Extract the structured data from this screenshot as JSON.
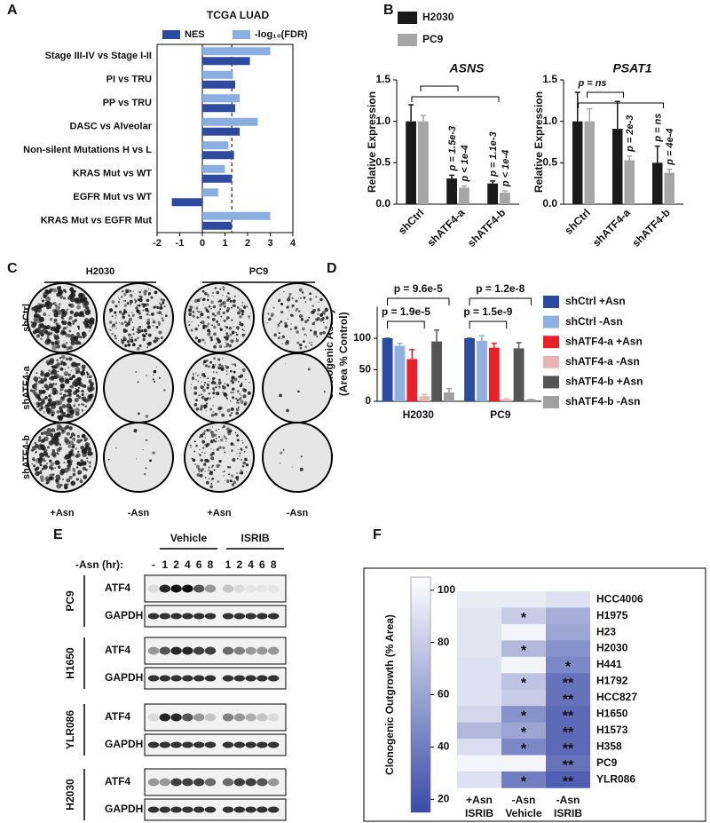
{
  "chart_data": [
    {
      "type": "bar",
      "orientation": "horizontal",
      "panel": "A",
      "title": "TCGA LUAD",
      "categories": [
        "Stage III-IV vs Stage I-II",
        "PI vs TRU",
        "PP vs TRU",
        "DASC vs Alveolar",
        "Non-silent Mutations H vs L",
        "KRAS Mut vs WT",
        "EGFR Mut vs WT",
        "KRAS Mut vs EGFR Mut"
      ],
      "series": [
        {
          "name": "NES",
          "color": "#2e4a9e",
          "values": [
            2.1,
            1.45,
            1.45,
            1.65,
            1.4,
            1.3,
            -1.35,
            1.3
          ]
        },
        {
          "name": "-log₁₀(FDR)",
          "color": "#8aaee0",
          "values": [
            3.0,
            1.35,
            1.65,
            2.45,
            1.15,
            1.0,
            0.7,
            3.0
          ]
        }
      ],
      "xlim": [
        -2,
        4
      ],
      "xticks": [
        -2,
        -1,
        0,
        1,
        2,
        3,
        4
      ],
      "reference_line": 1.3
    },
    {
      "type": "bar",
      "panel": "B",
      "title": "ASNS",
      "ylabel": "Relative Expression",
      "categories": [
        "shCtrl",
        "shATF4-a",
        "shATF4-b"
      ],
      "series": [
        {
          "name": "H2030",
          "color": "#1a1a1a",
          "values": [
            1.0,
            0.31,
            0.25
          ],
          "errors": [
            0.2,
            0.04,
            0.03
          ]
        },
        {
          "name": "PC9",
          "color": "#a6a6a6",
          "values": [
            1.0,
            0.2,
            0.14
          ],
          "errors": [
            0.07,
            0.02,
            0.02
          ]
        }
      ],
      "ylim": [
        0,
        1.5
      ],
      "yticks": [
        {
          "value": 0,
          "label": "0.0"
        },
        {
          "value": 0.5,
          "label": "0.5"
        },
        {
          "value": 1,
          "label": "1.0"
        },
        {
          "value": 1.5,
          "label": "1.5"
        }
      ],
      "annotations": [
        "p = 1.5e-3",
        "p < 1e-4",
        "p = 1.1e-3",
        "p < 1e-4"
      ]
    },
    {
      "type": "bar",
      "title": "PSAT1",
      "ylabel": "Relative Expression",
      "categories": [
        "shCtrl",
        "shATF4-a",
        "shATF4-b"
      ],
      "series": [
        {
          "color": "#1a1a1a",
          "values": [
            1.0,
            0.91,
            0.5
          ],
          "errors": [
            0.35,
            0.33,
            0.2
          ]
        },
        {
          "color": "#a6a6a6",
          "values": [
            1.0,
            0.53,
            0.38
          ],
          "errors": [
            0.15,
            0.05,
            0.04
          ]
        }
      ],
      "ylim": [
        0,
        1.5
      ],
      "yticks": [
        {
          "value": 0,
          "label": "0.0"
        },
        {
          "value": 0.5,
          "label": "0.5"
        },
        {
          "value": 1,
          "label": "1.0"
        },
        {
          "value": 1.5,
          "label": "1.5"
        }
      ],
      "annotations": [
        "p = ns",
        "p = 2e-3",
        "p = ns",
        "p = 4e-4"
      ]
    },
    {
      "type": "bar",
      "panel": "D",
      "ylabel": [
        "Clonogenic Assay",
        "(Area % Control)"
      ],
      "categories": [
        "H2030",
        "PC9"
      ],
      "series": [
        {
          "name": "shCtrl +Asn",
          "color": "#2b4ba0",
          "values": [
            100,
            100
          ],
          "errors": [
            0,
            0
          ]
        },
        {
          "name": "shCtrl -Asn",
          "color": "#8fb0e0",
          "values": [
            88,
            96
          ],
          "errors": [
            4,
            8
          ]
        },
        {
          "name": "shATF4-a +Asn",
          "color": "#e8202a",
          "values": [
            67,
            85
          ],
          "errors": [
            15,
            7
          ]
        },
        {
          "name": "shATF4-a -Asn",
          "color": "#e8b4b4",
          "values": [
            8,
            3
          ],
          "errors": [
            3,
            1
          ]
        },
        {
          "name": "shATF4-b +Asn",
          "color": "#555555",
          "values": [
            95,
            84
          ],
          "errors": [
            18,
            9
          ]
        },
        {
          "name": "shATF4-b -Asn",
          "color": "#a0a0a0",
          "values": [
            14,
            3
          ],
          "errors": [
            6,
            0
          ]
        }
      ],
      "ylim": [
        0,
        150
      ],
      "yticks": [
        0,
        50,
        100
      ],
      "annotations": [
        "p = 9.6e-5",
        "p = 1.9e-5",
        "p = 1.2e-8",
        "p = 1.5e-9"
      ]
    },
    {
      "type": "heatmap",
      "panel": "F",
      "colorbar_label": "Clonogenic Outgrowth (% Area)",
      "rows": [
        "HCC4006",
        "H1975",
        "H23",
        "H2030",
        "H441",
        "H1792",
        "HCC827",
        "H1650",
        "H1573",
        "H358",
        "PC9",
        "YLR086"
      ],
      "column_labels": [
        [
          "+Asn",
          "ISRIB"
        ],
        [
          "-Asn",
          "Vehicle"
        ],
        [
          "-Asn",
          "ISRIB"
        ]
      ],
      "values": [
        [
          95,
          95,
          90
        ],
        [
          92,
          80,
          65
        ],
        [
          92,
          100,
          60
        ],
        [
          92,
          70,
          50
        ],
        [
          90,
          100,
          45
        ],
        [
          90,
          75,
          35
        ],
        [
          90,
          80,
          35
        ],
        [
          85,
          50,
          30
        ],
        [
          70,
          60,
          30
        ],
        [
          88,
          45,
          30
        ],
        [
          100,
          100,
          35
        ],
        [
          90,
          40,
          25
        ]
      ],
      "annotations": [
        [
          null,
          null,
          null
        ],
        [
          null,
          "*",
          null
        ],
        [
          null,
          null,
          null
        ],
        [
          null,
          "*",
          null
        ],
        [
          null,
          null,
          "*"
        ],
        [
          null,
          "*",
          "**"
        ],
        [
          null,
          null,
          "**"
        ],
        [
          null,
          "*",
          "**"
        ],
        [
          null,
          "*",
          "**"
        ],
        [
          null,
          "*",
          "**"
        ],
        [
          null,
          null,
          "**"
        ],
        [
          null,
          "*",
          "**"
        ]
      ],
      "zlim": [
        15,
        105
      ],
      "zticks": [
        20,
        40,
        60,
        80,
        100
      ],
      "color_low": "#3a4ba8",
      "color_high": "#ffffff"
    }
  ],
  "colony_panel": {
    "panel": "C",
    "columns": [
      "H2030",
      "PC9"
    ],
    "rows": [
      "shCtrl",
      "shATF4-a",
      "shATF4-b"
    ],
    "conditions": [
      "+Asn",
      "-Asn",
      "+Asn",
      "-Asn"
    ]
  },
  "blot_panel": {
    "panel": "E",
    "groups": [
      "Vehicle",
      "ISRIB"
    ],
    "lane_header": "-Asn (hr):",
    "lanes": [
      "-",
      "1",
      "2",
      "4",
      "6",
      "8",
      "1",
      "2",
      "4",
      "6",
      "8"
    ],
    "cell_lines": [
      {
        "name": "PC9",
        "proteins": [
          "ATF4",
          "GAPDH"
        ]
      },
      {
        "name": "H1650",
        "proteins": [
          "ATF4",
          "GAPDH"
        ]
      },
      {
        "name": "YLR086",
        "proteins": [
          "ATF4",
          "GAPDH"
        ]
      },
      {
        "name": "H2030",
        "proteins": [
          "ATF4",
          "GAPDH"
        ]
      }
    ]
  }
}
